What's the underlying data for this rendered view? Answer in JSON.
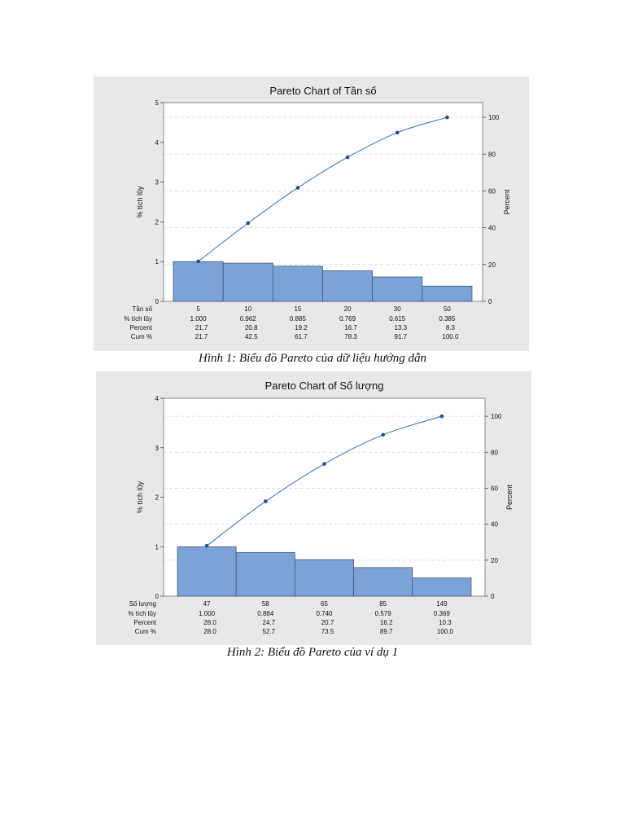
{
  "colors": {
    "panel": "#e8e8e8",
    "bar": "#7ba3d8",
    "bar_edge": "#3a4c6a",
    "line": "#2e6fc0",
    "grid": "#d8d8d8"
  },
  "captions": {
    "chart1": "Hình 1: Biểu đồ Pareto của dữ liệu hướng dẫn",
    "chart2": "Hình 2: Biểu đồ Pareto của ví dụ 1"
  },
  "chart_data": [
    {
      "type": "bar",
      "title": "Pareto Chart of Tần số",
      "ylabel": "% tích lũy",
      "y2label": "Percent",
      "ylim": [
        0,
        5
      ],
      "yticks": [
        0,
        1,
        2,
        3,
        4,
        5
      ],
      "y2lim": [
        0,
        108
      ],
      "y2ticks": [
        0,
        20,
        40,
        60,
        80,
        100
      ],
      "grid": true,
      "categories": [
        "5",
        "10",
        "15",
        "20",
        "30",
        "50"
      ],
      "values": [
        1.0,
        0.962,
        0.885,
        0.769,
        0.615,
        0.385
      ],
      "table": {
        "row_labels": [
          "Tần số",
          "% tích lũy",
          "Percent",
          "Cum %"
        ],
        "rows": [
          [
            "1.000",
            "0.962",
            "0.885",
            "0.769",
            "0.615",
            "0.385"
          ],
          [
            "21.7",
            "20.8",
            "19.2",
            "16.7",
            "13.3",
            "8.3"
          ],
          [
            "21.7",
            "42.5",
            "61.7",
            "78.3",
            "91.7",
            "100.0"
          ]
        ]
      },
      "cum_percent": [
        21.7,
        42.5,
        61.7,
        78.3,
        91.7,
        100.0
      ]
    },
    {
      "type": "bar",
      "title": "Pareto Chart of Số lượng",
      "ylabel": "% tích lũy",
      "y2label": "Percent",
      "ylim": [
        0,
        4
      ],
      "yticks": [
        0,
        1,
        2,
        3,
        4
      ],
      "y2lim": [
        0,
        110
      ],
      "y2ticks": [
        0,
        20,
        40,
        60,
        80,
        100
      ],
      "grid": true,
      "categories": [
        "47",
        "58",
        "65",
        "85",
        "149"
      ],
      "values": [
        1.0,
        0.884,
        0.74,
        0.579,
        0.369
      ],
      "table": {
        "row_labels": [
          "Số lượng",
          "% tích lũy",
          "Percent",
          "Cum %"
        ],
        "rows": [
          [
            "1.000",
            "0.884",
            "0.740",
            "0.579",
            "0.369"
          ],
          [
            "28.0",
            "24.7",
            "20.7",
            "16.2",
            "10.3"
          ],
          [
            "28.0",
            "52.7",
            "73.5",
            "89.7",
            "100.0"
          ]
        ]
      },
      "cum_percent": [
        28.0,
        52.7,
        73.5,
        89.7,
        100.0
      ]
    }
  ]
}
